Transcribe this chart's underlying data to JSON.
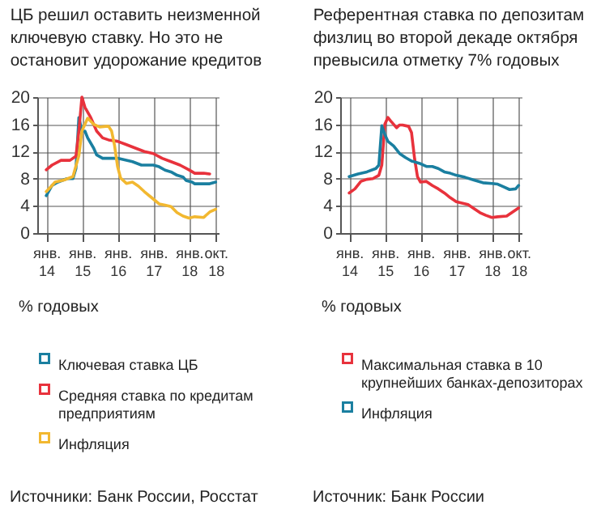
{
  "chart_data": [
    {
      "type": "line",
      "title": "ЦБ решил оставить неизменной ключевую ставку. Но это не остановит удорожание кредитов",
      "ylabel": "% годовых",
      "annotations": [
        "Источники: Банк России, Росстат"
      ],
      "xlim": [
        "2013-10",
        "2018-11"
      ],
      "ylim": [
        0,
        20
      ],
      "yticks": [
        0,
        4,
        8,
        12,
        16,
        20
      ],
      "xticks": [
        {
          "value": "2014-01",
          "label": "янв. 14"
        },
        {
          "value": "2015-01",
          "label": "янв. 15"
        },
        {
          "value": "2016-01",
          "label": "янв. 16"
        },
        {
          "value": "2017-01",
          "label": "янв. 17"
        },
        {
          "value": "2018-01",
          "label": "янв. 18"
        },
        {
          "value": "2018-10",
          "label": "окт. 18"
        }
      ],
      "grid": true,
      "legend": "bottom",
      "line_style": "solid",
      "series": [
        {
          "name": "Ключевая ставка ЦБ",
          "color": "#1a7fa0",
          "x": [
            "2014-01",
            "2014-03",
            "2014-05",
            "2014-08",
            "2014-10",
            "2014-11",
            "2014-12",
            "2015-01",
            "2015-02",
            "2015-03",
            "2015-05",
            "2015-06",
            "2015-08",
            "2016-01",
            "2016-06",
            "2016-09",
            "2017-01",
            "2017-03",
            "2017-05",
            "2017-07",
            "2017-09",
            "2017-11",
            "2017-12",
            "2018-02",
            "2018-03",
            "2018-08",
            "2018-10"
          ],
          "values": [
            5.5,
            7,
            7.5,
            8,
            8,
            9.5,
            17,
            15,
            15,
            14,
            12.5,
            11.5,
            11,
            11,
            10.5,
            10,
            10,
            9.75,
            9.25,
            9,
            8.5,
            8.25,
            7.75,
            7.5,
            7.25,
            7.25,
            7.5
          ]
        },
        {
          "name": "Средняя ставка по кредитам предприятиям",
          "color": "#e8323c",
          "x": [
            "2014-01",
            "2014-03",
            "2014-06",
            "2014-09",
            "2014-11",
            "2014-12",
            "2015-01",
            "2015-02",
            "2015-04",
            "2015-06",
            "2015-08",
            "2015-10",
            "2016-01",
            "2016-04",
            "2016-07",
            "2016-10",
            "2017-01",
            "2017-04",
            "2017-07",
            "2017-10",
            "2018-01",
            "2018-03",
            "2018-06",
            "2018-08"
          ],
          "values": [
            9.3,
            10,
            10.7,
            10.7,
            11.3,
            15,
            20,
            18.5,
            17,
            15,
            14,
            13.7,
            13.5,
            13,
            12.5,
            12,
            11.7,
            11,
            10.5,
            10,
            9.3,
            8.8,
            8.8,
            8.7
          ]
        },
        {
          "name": "Инфляция",
          "color": "#f2b830",
          "x": [
            "2014-01",
            "2014-03",
            "2014-04",
            "2014-07",
            "2014-10",
            "2014-12",
            "2015-01",
            "2015-03",
            "2015-05",
            "2015-07",
            "2015-09",
            "2015-10",
            "2015-11",
            "2015-12",
            "2016-01",
            "2016-02",
            "2016-04",
            "2016-06",
            "2016-08",
            "2016-10",
            "2017-01",
            "2017-03",
            "2017-05",
            "2017-07",
            "2017-09",
            "2017-11",
            "2018-01",
            "2018-03",
            "2018-06",
            "2018-08",
            "2018-10"
          ],
          "values": [
            6.1,
            7,
            7.5,
            7.8,
            8.3,
            11.4,
            15,
            16.9,
            16,
            15.6,
            15.7,
            15.7,
            15,
            12.9,
            9.8,
            8.1,
            7.3,
            7.5,
            6.9,
            6.1,
            5,
            4.3,
            4.1,
            3.9,
            3,
            2.5,
            2.2,
            2.4,
            2.3,
            3.1,
            3.5
          ]
        }
      ]
    },
    {
      "type": "line",
      "title": "Референтная ставка по депозитам физлиц во второй декаде октября превысила отметку 7% годовых",
      "ylabel": "% годовых",
      "annotations": [
        "Источник: Банк России"
      ],
      "xlim": [
        "2013-10",
        "2018-11"
      ],
      "ylim": [
        0,
        20
      ],
      "yticks": [
        0,
        4,
        8,
        12,
        16,
        20
      ],
      "xticks": [
        {
          "value": "2014-01",
          "label": "янв. 14"
        },
        {
          "value": "2015-01",
          "label": "янв. 15"
        },
        {
          "value": "2016-01",
          "label": "янв. 16"
        },
        {
          "value": "2017-01",
          "label": "янв. 17"
        },
        {
          "value": "2018-01",
          "label": "янв. 18"
        },
        {
          "value": "2018-10",
          "label": "окт. 18"
        }
      ],
      "grid": true,
      "legend": "bottom",
      "line_style": "solid",
      "series": [
        {
          "name": "Максимальная ставка в 10 крупнейших банках-депозиторах",
          "color": "#e8323c",
          "x": [
            "2014-01",
            "2014-03",
            "2014-05",
            "2014-07",
            "2014-09",
            "2014-11",
            "2014-12",
            "2015-01",
            "2015-02",
            "2015-03",
            "2015-04",
            "2015-05",
            "2015-06",
            "2015-07",
            "2015-09",
            "2015-10",
            "2015-11",
            "2015-12",
            "2016-01",
            "2016-03",
            "2016-05",
            "2016-07",
            "2016-09",
            "2016-11",
            "2017-01",
            "2017-03",
            "2017-05",
            "2017-07",
            "2017-09",
            "2017-11",
            "2018-01",
            "2018-03",
            "2018-06",
            "2018-08",
            "2018-10"
          ],
          "values": [
            5.9,
            6.5,
            7.6,
            7.9,
            8,
            8.5,
            10,
            16,
            17,
            16.5,
            16,
            15.5,
            15.9,
            15.9,
            15.7,
            14.8,
            11,
            8.3,
            7.5,
            7.6,
            7,
            6.5,
            5.9,
            5.2,
            4.6,
            4.4,
            4.2,
            3.6,
            3,
            2.6,
            2.3,
            2.4,
            2.5,
            3.1,
            3.7
          ]
        },
        {
          "name": "Инфляция",
          "color": "#1a7fa0",
          "x": [
            "2014-01",
            "2014-04",
            "2014-07",
            "2014-10",
            "2014-11",
            "2014-12",
            "2015-01",
            "2015-02",
            "2015-04",
            "2015-06",
            "2015-08",
            "2015-10",
            "2016-01",
            "2016-03",
            "2016-05",
            "2016-07",
            "2016-09",
            "2016-11",
            "2017-01",
            "2017-04",
            "2017-07",
            "2017-10",
            "2018-01",
            "2018-03",
            "2018-05",
            "2018-07",
            "2018-09",
            "2018-10"
          ],
          "values": [
            8.3,
            8.7,
            9,
            9.5,
            10,
            15.8,
            14.5,
            13.5,
            12.8,
            11.7,
            11.1,
            10.6,
            10.2,
            9.8,
            9.8,
            9.5,
            9,
            8.8,
            8.5,
            8.2,
            7.8,
            7.4,
            7.3,
            7.2,
            6.8,
            6.4,
            6.5,
            7
          ]
        }
      ]
    }
  ]
}
